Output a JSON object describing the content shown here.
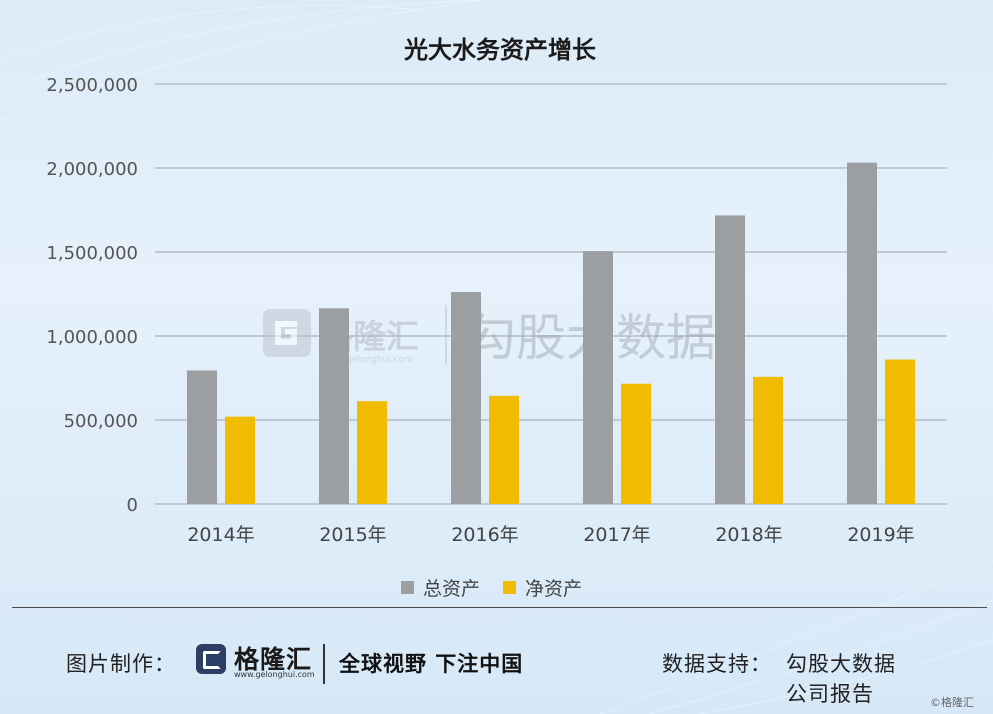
{
  "chart_data": {
    "type": "bar",
    "title": "光大水务资产增长",
    "categories": [
      "2014年",
      "2015年",
      "2016年",
      "2017年",
      "2018年",
      "2019年"
    ],
    "series": [
      {
        "name": "总资产",
        "color": "#9c9fa2",
        "values": [
          795000,
          1165000,
          1262000,
          1505000,
          1718000,
          2032000
        ]
      },
      {
        "name": "净资产",
        "color": "#f0bb00",
        "values": [
          520000,
          612000,
          644000,
          716000,
          757000,
          860000
        ]
      }
    ],
    "ylim": [
      0,
      2500000
    ],
    "yticks": [
      0,
      500000,
      1000000,
      1500000,
      2000000,
      2500000
    ],
    "ytick_labels": [
      "0",
      "500,000",
      "1,000,000",
      "1,500,000",
      "2,000,000",
      "2,500,000"
    ],
    "grid": true,
    "legend": "bottom",
    "watermark": {
      "logo_text": "格隆汇",
      "logo_url": "www.gelonghui.com",
      "brand_text": "勾股大数据"
    }
  },
  "footer": {
    "made_by_label": "图片制作：",
    "logo_text": "格隆汇",
    "logo_url": "www.gelonghui.com",
    "slogan": "全球视野 下注中国",
    "support_label": "数据支持：",
    "support_line1": "勾股大数据",
    "support_line2": "公司报告",
    "corner_mark": "©格隆汇"
  }
}
